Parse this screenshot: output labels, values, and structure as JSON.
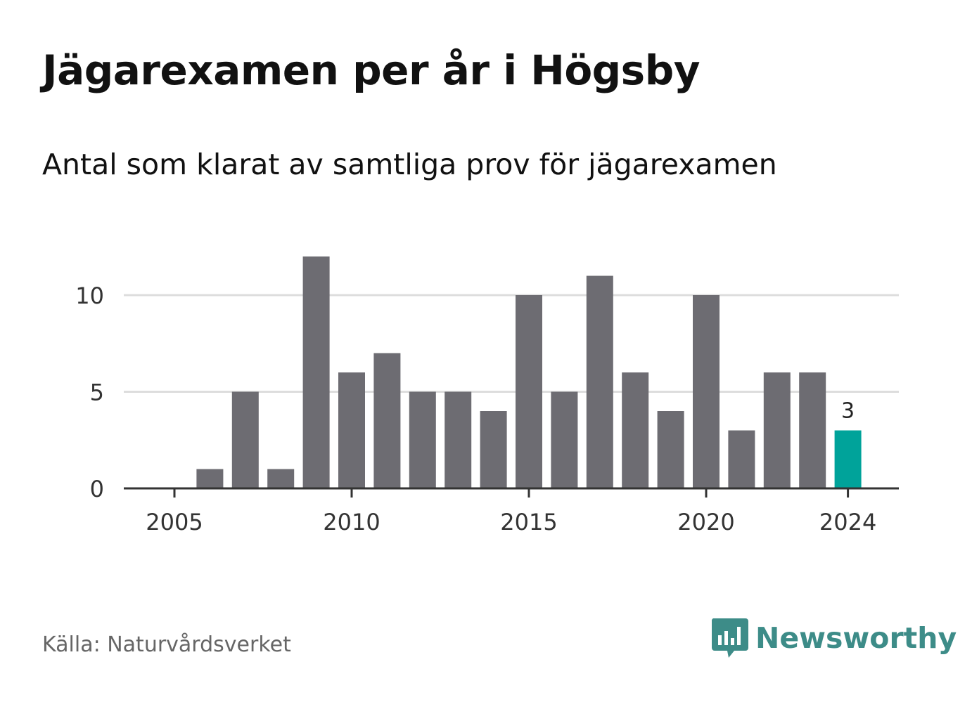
{
  "title": "Jägarexamen per år i Högsby",
  "subtitle": "Antal som klarat av samtliga prov för jägarexamen",
  "source": "Källa: Naturvårdsverket",
  "brand": {
    "name": "Newsworthy",
    "icon": "newsworthy-logo-icon",
    "color": "#3d8c88"
  },
  "colors": {
    "bar": "#6d6c72",
    "highlight": "#00a39a",
    "grid": "#dddddd",
    "axis": "#333333",
    "text": "#333333"
  },
  "chart_data": {
    "type": "bar",
    "categories": [
      "2005",
      "2006",
      "2007",
      "2008",
      "2009",
      "2010",
      "2011",
      "2012",
      "2013",
      "2014",
      "2015",
      "2016",
      "2017",
      "2018",
      "2019",
      "2020",
      "2021",
      "2022",
      "2023",
      "2024"
    ],
    "values": [
      0,
      1,
      5,
      1,
      12,
      6,
      7,
      5,
      5,
      4,
      10,
      5,
      11,
      6,
      4,
      10,
      3,
      6,
      6,
      3
    ],
    "xticks": [
      "2005",
      "2010",
      "2015",
      "2020",
      "2024"
    ],
    "yticks": [
      "0",
      "5",
      "10"
    ],
    "ylim": [
      0,
      12
    ],
    "highlight_index": 19,
    "highlight_label": "3",
    "grid": true,
    "title": "Jägarexamen per år i Högsby",
    "subtitle": "Antal som klarat av samtliga prov för jägarexamen",
    "xlabel": "",
    "ylabel": ""
  }
}
